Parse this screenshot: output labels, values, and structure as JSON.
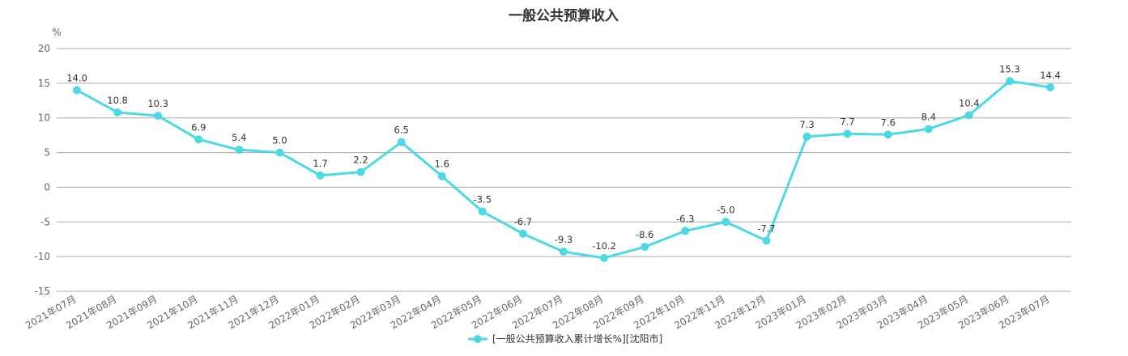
{
  "chart_data": {
    "type": "line",
    "title": "一般公共预算收入",
    "ylabel": "%",
    "xlabel": "",
    "ylim": [
      -15,
      20
    ],
    "yticks": [
      20,
      15,
      10,
      5,
      0,
      -5,
      -10,
      -15
    ],
    "grid": true,
    "legend_position": "bottom",
    "categories": [
      "2021年07月",
      "2021年08月",
      "2021年09月",
      "2021年10月",
      "2021年11月",
      "2021年12月",
      "2022年01月",
      "2022年02月",
      "2022年03月",
      "2022年04月",
      "2022年05月",
      "2022年06月",
      "2022年07月",
      "2022年08月",
      "2022年09月",
      "2022年10月",
      "2022年11月",
      "2022年12月",
      "2023年01月",
      "2023年02月",
      "2023年03月",
      "2023年04月",
      "2023年05月",
      "2023年06月",
      "2023年07月"
    ],
    "series": [
      {
        "name": "[一般公共预算收入累计增长%][沈阳市]",
        "color": "#4dd9e3",
        "values": [
          14.0,
          10.8,
          10.3,
          6.9,
          5.4,
          5.0,
          1.7,
          2.2,
          6.5,
          1.6,
          -3.5,
          -6.7,
          -9.3,
          -10.2,
          -8.6,
          -6.3,
          -5.0,
          -7.7,
          7.3,
          7.7,
          7.6,
          8.4,
          10.4,
          15.3,
          14.4
        ],
        "labels": [
          "14.0",
          "10.8",
          "10.3",
          "6.9",
          "5.4",
          "5.0",
          "1.7",
          "2.2",
          "6.5",
          "1.6",
          "-3.5",
          "-6.7",
          "-9.3",
          "-10.2",
          "-8.6",
          "-6.3",
          "-5.0",
          "-7.7",
          "7.3",
          "7.7",
          "7.6",
          "8.4",
          "10.4",
          "15.3",
          "14.4"
        ]
      }
    ]
  }
}
